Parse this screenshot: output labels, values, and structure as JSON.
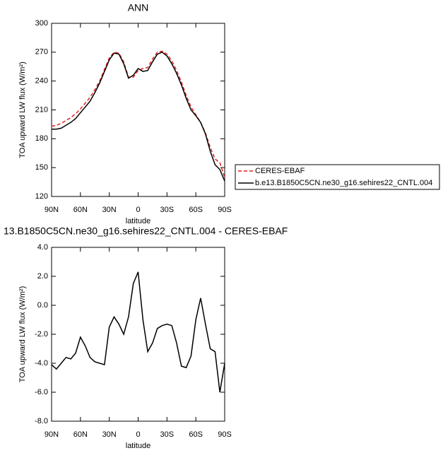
{
  "chart_data": [
    {
      "type": "line",
      "title": "ANN",
      "x_label": "latitude",
      "y_label": "TOA upward LW flux (W/m²)",
      "x": [
        90,
        85,
        80,
        75,
        70,
        65,
        60,
        55,
        50,
        45,
        40,
        35,
        30,
        25,
        20,
        15,
        10,
        5,
        0,
        -5,
        -10,
        -15,
        -20,
        -25,
        -30,
        -35,
        -40,
        -45,
        -50,
        -55,
        -60,
        -65,
        -70,
        -75,
        -80,
        -85,
        -90
      ],
      "xlim": [
        90,
        -90
      ],
      "xticks": [
        {
          "value": 90,
          "label": "90N"
        },
        {
          "value": 60,
          "label": "60N"
        },
        {
          "value": 30,
          "label": "30N"
        },
        0,
        {
          "value": -30,
          "label": "30S"
        },
        {
          "value": -60,
          "label": "60S"
        },
        {
          "value": -90,
          "label": "90S"
        }
      ],
      "ylim": [
        120,
        300
      ],
      "yticks": [
        120,
        150,
        180,
        210,
        240,
        270,
        300
      ],
      "legend": "outside-right",
      "series": [
        {
          "name": "CERES-EBAF",
          "color": "#e8201c",
          "dashed": true,
          "values": [
            193,
            194,
            196,
            199,
            202,
            206,
            211,
            217,
            223,
            231,
            240,
            252,
            264,
            270,
            269,
            260,
            244,
            244,
            251,
            253,
            254,
            263,
            270,
            271,
            268,
            261,
            251,
            239,
            225,
            213,
            205,
            197,
            186,
            171,
            159,
            155,
            140
          ]
        },
        {
          "name": "b.e13.B1850C5CN.ne30_g16.sehires22_CNTL.004",
          "color": "#000000",
          "dashed": false,
          "values": [
            190,
            190,
            191,
            194,
            197,
            201,
            207,
            213,
            219,
            228,
            238,
            250,
            262,
            269,
            268,
            258,
            243,
            246,
            253,
            250,
            251,
            260,
            268,
            270,
            266,
            258,
            248,
            236,
            222,
            210,
            204,
            197,
            185,
            167,
            153,
            148,
            136
          ]
        }
      ]
    },
    {
      "type": "line",
      "title": "13.B1850C5CN.ne30_g16.sehires22_CNTL.004 - CERES-EBAF",
      "x_label": "latitude",
      "y_label": "TOA upward LW flux (W/m²)",
      "x": [
        90,
        85,
        80,
        75,
        70,
        65,
        60,
        55,
        50,
        45,
        40,
        35,
        30,
        25,
        20,
        15,
        10,
        5,
        0,
        -5,
        -10,
        -15,
        -20,
        -25,
        -30,
        -35,
        -40,
        -45,
        -50,
        -55,
        -60,
        -65,
        -70,
        -75,
        -80,
        -85,
        -90
      ],
      "xlim": [
        90,
        -90
      ],
      "xticks": [
        {
          "value": 90,
          "label": "90N"
        },
        {
          "value": 60,
          "label": "60N"
        },
        {
          "value": 30,
          "label": "30N"
        },
        0,
        {
          "value": -30,
          "label": "30S"
        },
        {
          "value": -60,
          "label": "60S"
        },
        {
          "value": -90,
          "label": "90S"
        }
      ],
      "ylim": [
        -8,
        4
      ],
      "yticks": [
        {
          "value": -8,
          "label": "-8.0"
        },
        {
          "value": -6,
          "label": "-6.0"
        },
        {
          "value": -4,
          "label": "-4.0"
        },
        {
          "value": -2,
          "label": "-2.0"
        },
        {
          "value": 0,
          "label": "0.0"
        },
        {
          "value": 2,
          "label": "2.0"
        },
        {
          "value": 4,
          "label": "4.0"
        }
      ],
      "series": [
        {
          "color": "#000000",
          "dashed": false,
          "values": [
            -4.1,
            -4.4,
            -4.0,
            -3.6,
            -3.7,
            -3.3,
            -2.2,
            -2.8,
            -3.6,
            -3.9,
            -4.0,
            -4.1,
            -1.5,
            -0.8,
            -1.3,
            -2.0,
            -0.8,
            1.5,
            2.3,
            -1.0,
            -3.2,
            -2.6,
            -1.6,
            -1.4,
            -1.3,
            -1.4,
            -2.6,
            -4.2,
            -4.3,
            -3.5,
            -1.0,
            0.5,
            -1.3,
            -3.0,
            -3.2,
            -6.0,
            -4.0
          ]
        }
      ]
    }
  ]
}
